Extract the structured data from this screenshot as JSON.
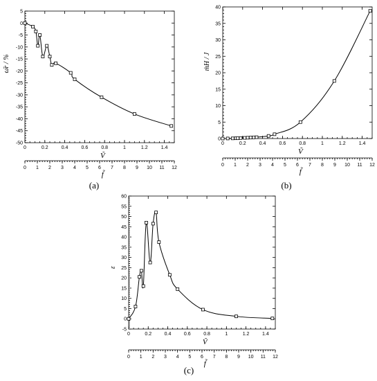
{
  "chart_data": [
    {
      "panel": "a",
      "panel_label": "(a)",
      "type": "line",
      "ylabel": "ω̄r / %",
      "xlabel_top": "Ṽ",
      "xlabel_bottom": "f̃",
      "xlim": [
        0,
        1.5
      ],
      "ylim": [
        -50,
        5
      ],
      "x2lim": [
        0,
        12
      ],
      "xticks": [
        "0",
        "0.2",
        "0.4",
        "0.6",
        "0.8",
        "1",
        "1.2",
        "1.4"
      ],
      "x2ticks": [
        "0",
        "1",
        "2",
        "3",
        "4",
        "5",
        "6",
        "7",
        "8",
        "9",
        "10",
        "11",
        "12"
      ],
      "yticks": [
        "5",
        "0",
        "-5",
        "-10",
        "-15",
        "-20",
        "-25",
        "-30",
        "-35",
        "-40",
        "-45",
        "-50"
      ],
      "series": [
        {
          "points": [
            [
              0,
              0
            ],
            [
              0.08,
              -1.5
            ],
            [
              0.11,
              -3.5
            ],
            [
              0.13,
              -9.5
            ],
            [
              0.15,
              -5.0
            ],
            [
              0.18,
              -14.0
            ],
            [
              0.22,
              -9.5
            ],
            [
              0.25,
              -14.0
            ],
            [
              0.27,
              -17.5
            ],
            [
              0.31,
              -16.8
            ],
            [
              0.46,
              -20.8
            ],
            [
              0.5,
              -23.5
            ],
            [
              0.77,
              -31.0
            ],
            [
              1.1,
              -38.0
            ],
            [
              1.47,
              -43.0
            ]
          ]
        }
      ]
    },
    {
      "panel": "b",
      "panel_label": "(b)",
      "type": "line",
      "ylabel": "ṁH / J",
      "xlabel_top": "Ṽ",
      "xlabel_bottom": "f̃",
      "xlim": [
        0,
        1.5
      ],
      "ylim": [
        0,
        40
      ],
      "x2lim": [
        0,
        12
      ],
      "xticks": [
        "0",
        "0.2",
        "0.4",
        "0.6",
        "0.8",
        "1",
        "1.2",
        "1.4"
      ],
      "x2ticks": [
        "0",
        "1",
        "2",
        "3",
        "4",
        "5",
        "6",
        "7",
        "8",
        "9",
        "10",
        "11",
        "12"
      ],
      "yticks": [
        "0",
        "5",
        "10",
        "15",
        "20",
        "25",
        "30",
        "35",
        "40"
      ],
      "series": [
        {
          "points": [
            [
              0,
              0
            ],
            [
              0.05,
              0.02
            ],
            [
              0.1,
              0.05
            ],
            [
              0.13,
              0.08
            ],
            [
              0.15,
              0.1
            ],
            [
              0.18,
              0.15
            ],
            [
              0.22,
              0.2
            ],
            [
              0.25,
              0.25
            ],
            [
              0.28,
              0.3
            ],
            [
              0.31,
              0.35
            ],
            [
              0.34,
              0.4
            ],
            [
              0.46,
              0.8
            ],
            [
              0.52,
              1.3
            ],
            [
              0.78,
              5.0
            ],
            [
              1.12,
              17.5
            ],
            [
              1.48,
              38.8
            ]
          ]
        }
      ]
    },
    {
      "panel": "c",
      "panel_label": "(c)",
      "type": "line",
      "ylabel": "ε",
      "xlabel_top": "Ṽ",
      "xlabel_bottom": "f̃",
      "xlim": [
        0,
        1.5
      ],
      "ylim": [
        -5,
        60
      ],
      "x2lim": [
        0,
        12
      ],
      "xticks": [
        "0",
        "0.2",
        "0.4",
        "0.6",
        "0.8",
        "1",
        "1.2",
        "1.4"
      ],
      "x2ticks": [
        "0",
        "1",
        "2",
        "3",
        "4",
        "5",
        "6",
        "7",
        "8",
        "9",
        "10",
        "11",
        "12"
      ],
      "yticks": [
        "-5",
        "0",
        "5",
        "10",
        "15",
        "20",
        "25",
        "30",
        "35",
        "40",
        "45",
        "50",
        "55",
        "60"
      ],
      "series": [
        {
          "points": [
            [
              0,
              0
            ],
            [
              0.07,
              6.0
            ],
            [
              0.11,
              20.5
            ],
            [
              0.13,
              23.5
            ],
            [
              0.15,
              16.0
            ],
            [
              0.18,
              47.0
            ],
            [
              0.22,
              27.5
            ],
            [
              0.25,
              46.5
            ],
            [
              0.28,
              52.0
            ],
            [
              0.31,
              37.5
            ],
            [
              0.42,
              21.5
            ],
            [
              0.5,
              14.5
            ],
            [
              0.76,
              4.5
            ],
            [
              1.1,
              1.2
            ],
            [
              1.47,
              0.2
            ]
          ]
        }
      ]
    }
  ]
}
